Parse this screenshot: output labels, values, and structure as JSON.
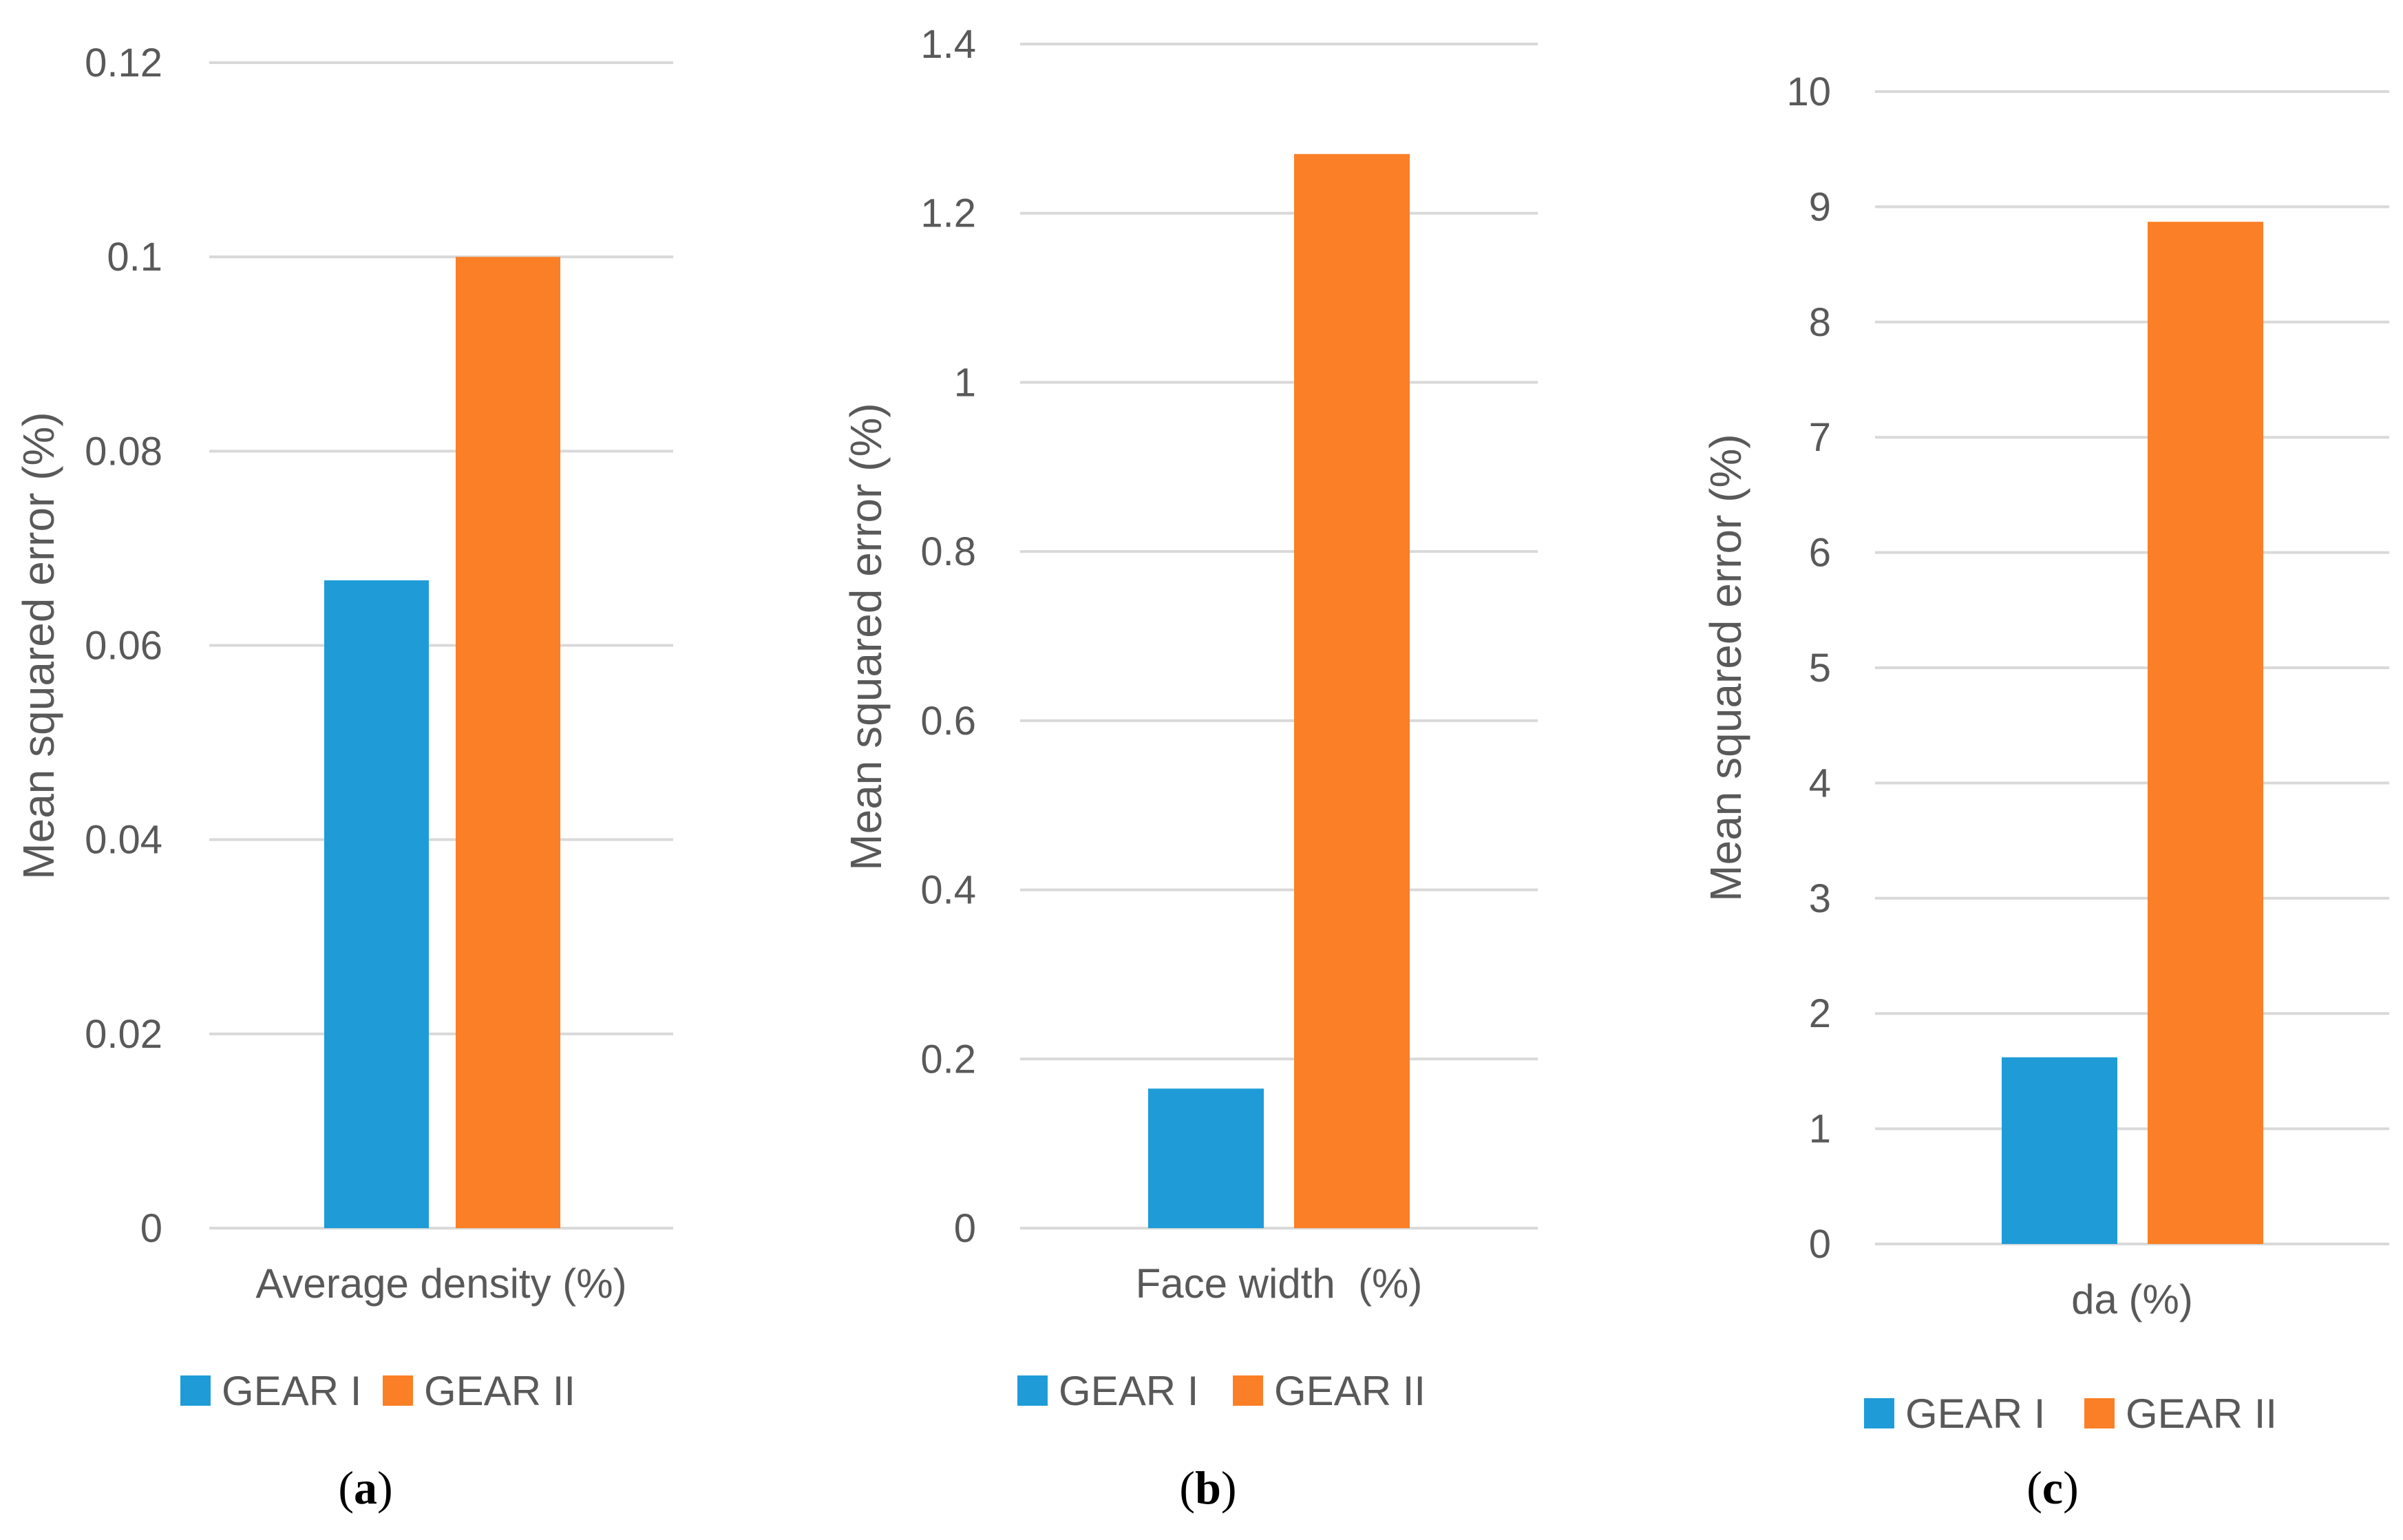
{
  "colors": {
    "gear_i": "#1f9cd8",
    "gear_ii": "#fb7f26",
    "grid": "#d9d9d9",
    "text": "#595959"
  },
  "legend": {
    "items": [
      "GEAR I",
      "GEAR II"
    ],
    "position": "bottom"
  },
  "chart_data": [
    {
      "type": "bar",
      "panel": "(a)",
      "panel_letter": "a",
      "title": "",
      "categories": [
        "Average density (%)"
      ],
      "xlabel": "Average density (%)",
      "ylabel": "Mean squared error (%)",
      "ylim": [
        0,
        0.12
      ],
      "yticks": [
        0,
        0.02,
        0.04,
        0.06,
        0.08,
        0.1,
        0.12
      ],
      "ytick_labels": [
        "0",
        "0.02",
        "0.04",
        "0.06",
        "0.08",
        "0.1",
        "0.12"
      ],
      "grid": true,
      "series": [
        {
          "name": "GEAR I",
          "values": [
            0.0667
          ]
        },
        {
          "name": "GEAR II",
          "values": [
            0.1
          ]
        }
      ]
    },
    {
      "type": "bar",
      "panel": "(b)",
      "panel_letter": "b",
      "title": "",
      "categories": [
        "Face width  (%)"
      ],
      "xlabel": "Face width  (%)",
      "ylabel": "Mean squared error (%)",
      "ylim": [
        0,
        1.4
      ],
      "yticks": [
        0,
        0.2,
        0.4,
        0.6,
        0.8,
        1,
        1.2,
        1.4
      ],
      "ytick_labels": [
        "0",
        "0.2",
        "0.4",
        "0.6",
        "0.8",
        "1",
        "1.2",
        "1.4"
      ],
      "grid": true,
      "series": [
        {
          "name": "GEAR I",
          "values": [
            0.165
          ]
        },
        {
          "name": "GEAR II",
          "values": [
            1.27
          ]
        }
      ]
    },
    {
      "type": "bar",
      "panel": "(c)",
      "panel_letter": "c",
      "title": "",
      "categories": [
        "da (%)"
      ],
      "xlabel": "da (%)",
      "ylabel": "Mean squared error (%)",
      "ylim": [
        0,
        10
      ],
      "yticks": [
        0,
        1,
        2,
        3,
        4,
        5,
        6,
        7,
        8,
        9,
        10
      ],
      "ytick_labels": [
        "0",
        "1",
        "2",
        "3",
        "4",
        "5",
        "6",
        "7",
        "8",
        "9",
        "10"
      ],
      "grid": true,
      "series": [
        {
          "name": "GEAR I",
          "values": [
            1.62
          ]
        },
        {
          "name": "GEAR II",
          "values": [
            8.87
          ]
        }
      ]
    }
  ]
}
